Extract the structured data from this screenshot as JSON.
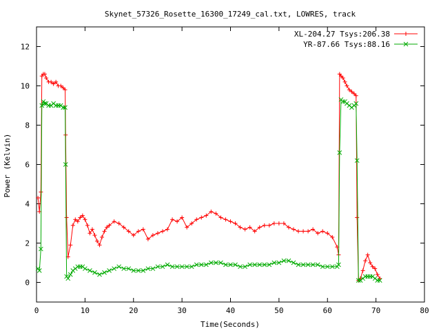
{
  "chart_data": {
    "type": "line",
    "title": "Skynet_57326_Rosette_16300_17249_cal.txt, LOWRES, track",
    "xlabel": "Time(Seconds)",
    "ylabel": "Power (Kelvin)",
    "xlim": [
      0,
      80
    ],
    "ylim": [
      -1,
      13
    ],
    "xticks": [
      0,
      10,
      20,
      30,
      40,
      50,
      60,
      70,
      80
    ],
    "yticks": [
      0,
      2,
      4,
      6,
      8,
      10,
      12
    ],
    "grid": false,
    "legend_position": "top-right",
    "series": [
      {
        "name": "XL-204.27 Tsys:206.38",
        "color": "#ff0000",
        "marker": "plus",
        "x": [
          0.3,
          0.6,
          0.9,
          1.1,
          1.4,
          1.7,
          2.0,
          2.5,
          3.0,
          3.5,
          4.0,
          4.5,
          5.0,
          5.5,
          5.9,
          6.0,
          6.2,
          6.5,
          7.0,
          7.5,
          8.0,
          8.5,
          9.0,
          9.5,
          10.0,
          10.5,
          11.0,
          11.5,
          12.0,
          12.5,
          13.0,
          13.5,
          14.0,
          14.5,
          15.0,
          16.0,
          17.0,
          18.0,
          19.0,
          20.0,
          21.0,
          22.0,
          23.0,
          24.0,
          25.0,
          26.0,
          27.0,
          28.0,
          29.0,
          30.0,
          31.0,
          32.0,
          33.0,
          34.0,
          35.0,
          36.0,
          37.0,
          38.0,
          39.0,
          40.0,
          41.0,
          42.0,
          43.0,
          44.0,
          45.0,
          46.0,
          47.0,
          48.0,
          49.0,
          50.0,
          51.0,
          52.0,
          53.0,
          54.0,
          55.0,
          56.0,
          57.0,
          58.0,
          59.0,
          60.0,
          61.0,
          62.0,
          62.3,
          62.5,
          62.8,
          63.2,
          63.6,
          64.0,
          64.5,
          65.0,
          65.5,
          65.9,
          66.1,
          66.4,
          66.8,
          67.3,
          67.8,
          68.3,
          68.8,
          69.3,
          69.8,
          70.3,
          70.8
        ],
        "y": [
          4.3,
          3.6,
          4.6,
          10.5,
          10.6,
          10.6,
          10.4,
          10.2,
          10.2,
          10.1,
          10.2,
          10.0,
          10.0,
          9.9,
          9.8,
          7.5,
          3.3,
          1.3,
          1.9,
          2.9,
          3.2,
          3.1,
          3.3,
          3.4,
          3.2,
          2.9,
          2.5,
          2.7,
          2.4,
          2.1,
          1.9,
          2.3,
          2.6,
          2.8,
          2.9,
          3.1,
          3.0,
          2.8,
          2.6,
          2.4,
          2.6,
          2.7,
          2.2,
          2.4,
          2.5,
          2.6,
          2.7,
          3.2,
          3.1,
          3.3,
          2.8,
          3.0,
          3.2,
          3.3,
          3.4,
          3.6,
          3.5,
          3.3,
          3.2,
          3.1,
          3.0,
          2.8,
          2.7,
          2.8,
          2.6,
          2.8,
          2.9,
          2.9,
          3.0,
          3.0,
          3.0,
          2.8,
          2.7,
          2.6,
          2.6,
          2.6,
          2.7,
          2.5,
          2.6,
          2.5,
          2.3,
          1.8,
          1.4,
          10.6,
          10.5,
          10.4,
          10.2,
          10.0,
          9.8,
          9.7,
          9.6,
          9.5,
          3.3,
          0.1,
          0.2,
          0.6,
          1.1,
          1.4,
          1.0,
          0.8,
          0.7,
          0.4,
          0.2
        ]
      },
      {
        "name": "YR-87.66 Tsys:88.16",
        "color": "#00aa00",
        "marker": "cross",
        "x": [
          0.3,
          0.6,
          0.9,
          1.1,
          1.4,
          1.7,
          2.0,
          2.5,
          3.0,
          3.5,
          4.0,
          4.5,
          5.0,
          5.5,
          5.9,
          6.0,
          6.2,
          6.5,
          7.0,
          7.5,
          8.0,
          8.5,
          9.0,
          9.5,
          10.0,
          11.0,
          12.0,
          13.0,
          14.0,
          15.0,
          16.0,
          17.0,
          18.0,
          19.0,
          20.0,
          21.0,
          22.0,
          23.0,
          24.0,
          25.0,
          26.0,
          27.0,
          28.0,
          29.0,
          30.0,
          31.0,
          32.0,
          33.0,
          34.0,
          35.0,
          36.0,
          37.0,
          38.0,
          39.0,
          40.0,
          41.0,
          42.0,
          43.0,
          44.0,
          45.0,
          46.0,
          47.0,
          48.0,
          49.0,
          50.0,
          51.0,
          52.0,
          53.0,
          54.0,
          55.0,
          56.0,
          57.0,
          58.0,
          59.0,
          60.0,
          61.0,
          62.0,
          62.3,
          62.5,
          62.8,
          63.2,
          63.6,
          64.0,
          64.5,
          65.0,
          65.5,
          65.9,
          66.1,
          66.4,
          66.8,
          67.3,
          67.8,
          68.3,
          68.8,
          69.3,
          69.8,
          70.3,
          70.8
        ],
        "y": [
          0.7,
          0.6,
          1.7,
          9.0,
          9.2,
          9.1,
          9.1,
          9.0,
          9.0,
          9.1,
          9.0,
          9.0,
          9.0,
          8.9,
          8.9,
          6.0,
          0.3,
          0.2,
          0.4,
          0.6,
          0.7,
          0.8,
          0.8,
          0.8,
          0.7,
          0.6,
          0.5,
          0.4,
          0.5,
          0.6,
          0.7,
          0.8,
          0.7,
          0.7,
          0.6,
          0.6,
          0.6,
          0.7,
          0.7,
          0.8,
          0.8,
          0.9,
          0.8,
          0.8,
          0.8,
          0.8,
          0.8,
          0.9,
          0.9,
          0.9,
          1.0,
          1.0,
          1.0,
          0.9,
          0.9,
          0.9,
          0.8,
          0.8,
          0.9,
          0.9,
          0.9,
          0.9,
          0.9,
          1.0,
          1.0,
          1.1,
          1.1,
          1.0,
          0.9,
          0.9,
          0.9,
          0.9,
          0.9,
          0.8,
          0.8,
          0.8,
          0.8,
          0.9,
          6.6,
          9.3,
          9.2,
          9.2,
          9.1,
          9.0,
          8.9,
          9.0,
          9.1,
          6.2,
          0.1,
          0.1,
          0.2,
          0.3,
          0.3,
          0.3,
          0.3,
          0.2,
          0.1,
          0.1
        ]
      }
    ]
  }
}
